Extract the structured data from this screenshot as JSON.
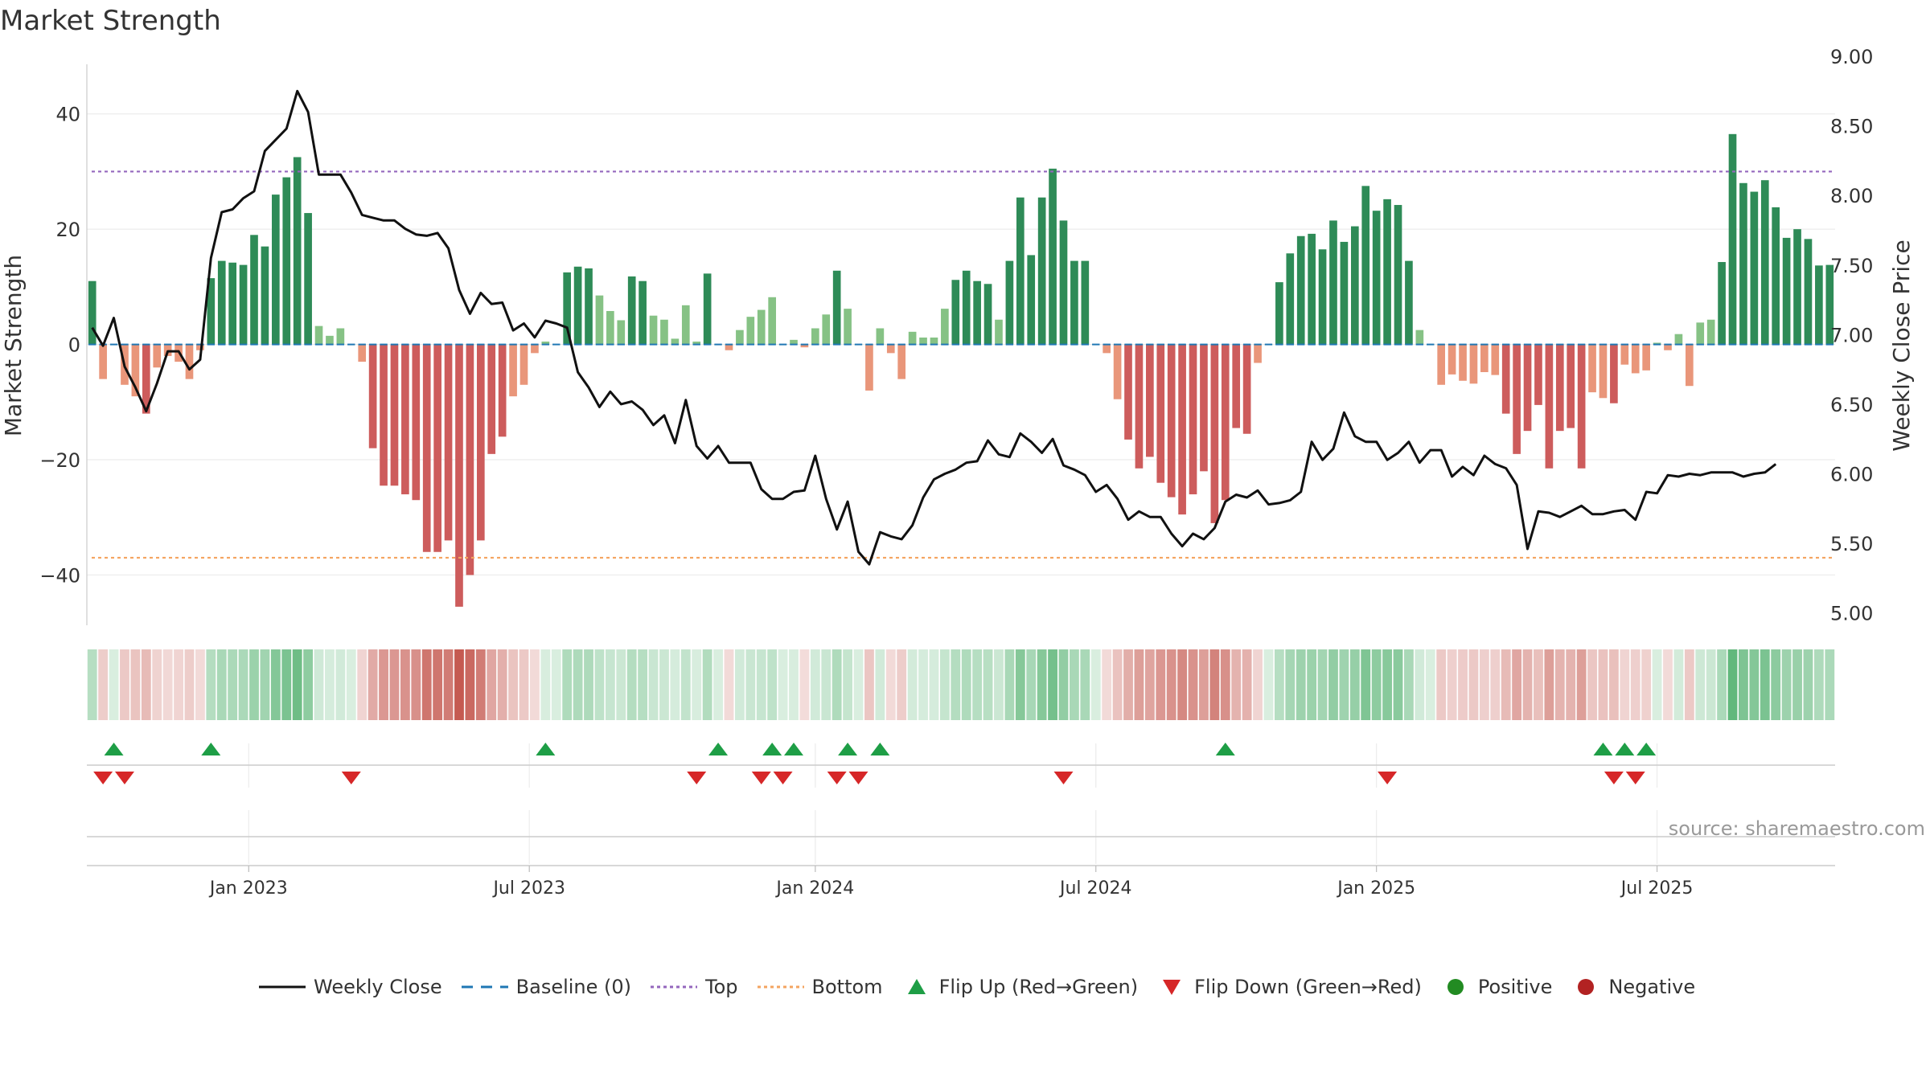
{
  "title": "Market Strength",
  "source": "source: sharemaestro.com",
  "colors": {
    "pos_strong": "#2e8b57",
    "pos_weak": "#86c285",
    "neg_strong": "#cd5c5c",
    "neg_weak": "#e9967a",
    "line": "#111111",
    "baseline": "#1f77b4",
    "top": "#9467bd",
    "bottom": "#f4a460",
    "flip_up": "#1e9e46",
    "flip_down": "#d62728",
    "positive": "#228b22",
    "negative": "#b22222",
    "grid": "#ececec"
  },
  "legend": [
    {
      "label": "Weekly Close",
      "symbol": "line"
    },
    {
      "label": "Baseline (0)",
      "symbol": "dash"
    },
    {
      "label": "Top",
      "symbol": "dot-line-top"
    },
    {
      "label": "Bottom",
      "symbol": "dot-line-bottom"
    },
    {
      "label": "Flip Up (Red→Green)",
      "symbol": "triangle-up"
    },
    {
      "label": "Flip Down (Green→Red)",
      "symbol": "triangle-down"
    },
    {
      "label": "Positive",
      "symbol": "dot-positive"
    },
    {
      "label": "Negative",
      "symbol": "dot-negative"
    }
  ],
  "chart_data": {
    "type": "bar",
    "title": "Market Strength",
    "xlabel": "",
    "ylabel": "Market Strength",
    "y2label": "Weekly Close Price",
    "ylim": [
      -49,
      50
    ],
    "y2lim": [
      4.9,
      9.0
    ],
    "yticks": [
      -40,
      -20,
      0,
      20,
      40
    ],
    "y2ticks": [
      "5.00",
      "5.50",
      "6.00",
      "6.50",
      "7.00",
      "7.50",
      "8.00",
      "8.50",
      "9.00"
    ],
    "x_tick_labels": [
      "Jan 2023",
      "Jul 2023",
      "Jan 2024",
      "Jul 2024",
      "Jan 2025",
      "Jul 2025"
    ],
    "x_tick_positions_weeks": [
      15,
      41,
      67.5,
      93.5,
      119.5,
      145.5
    ],
    "top_level": 30,
    "bottom_level": -37,
    "baseline": 0,
    "series": [
      {
        "name": "Market Strength",
        "values": [
          11,
          -6,
          0,
          -7,
          -9,
          -12,
          -4,
          -2,
          -3,
          -6,
          -1,
          11.5,
          14.5,
          14.2,
          13.8,
          19,
          17,
          26,
          29,
          32.5,
          22.8,
          3.2,
          1.5,
          2.8,
          0,
          -3,
          -18,
          -24.5,
          -24.5,
          -26,
          -27,
          -36,
          -36,
          -34,
          -45.5,
          -40,
          -34,
          -19,
          -16,
          -9,
          -7,
          -1.5,
          0.5,
          0,
          12.5,
          13.5,
          13.2,
          8.5,
          5.8,
          4.2,
          11.8,
          11,
          5,
          4.3,
          1,
          6.8,
          0.5,
          12.3,
          0,
          -1,
          2.5,
          4.8,
          6,
          8.2,
          0,
          0.8,
          -0.5,
          2.8,
          5.2,
          12.8,
          6.2,
          0,
          -8,
          2.8,
          -1.5,
          -6,
          2.2,
          1.2,
          1.2,
          6.2,
          11.2,
          12.8,
          11,
          10.5,
          4.3,
          14.5,
          25.5,
          15.5,
          25.5,
          30.5,
          21.5,
          14.5,
          14.5,
          0,
          -1.5,
          -9.5,
          -16.5,
          -21.5,
          -19.5,
          -24,
          -26.5,
          -29.5,
          -26,
          -22,
          -31,
          -27,
          -14.5,
          -15.5,
          -3.2,
          0,
          10.8,
          15.8,
          18.8,
          19.2,
          16.5,
          21.5,
          17.8,
          20.5,
          27.5,
          23.2,
          25.2,
          24.2,
          14.5,
          2.5,
          0,
          -7,
          -5.2,
          -6.3,
          -6.8,
          -4.8,
          -5.3,
          -12,
          -19,
          -15,
          -10.5,
          -21.5,
          -15,
          -14.5,
          -21.5,
          -8.3,
          -9.3,
          -10.2,
          -3.5,
          -5,
          -4.5,
          0.3,
          -1,
          1.8,
          -7.2,
          3.8,
          4.3,
          14.3,
          36.5,
          28,
          26.5,
          28.5,
          23.8,
          18.5,
          20,
          18.3,
          13.7,
          13.8
        ]
      },
      {
        "name": "Weekly Close",
        "values": [
          7.05,
          6.92,
          7.12,
          6.77,
          6.62,
          6.45,
          6.65,
          6.88,
          6.88,
          6.75,
          6.82,
          7.55,
          7.88,
          7.9,
          7.98,
          8.03,
          8.32,
          8.4,
          8.48,
          8.75,
          8.6,
          8.15,
          8.15,
          8.15,
          8.02,
          7.86,
          7.84,
          7.82,
          7.82,
          7.76,
          7.72,
          7.71,
          7.73,
          7.62,
          7.32,
          7.15,
          7.3,
          7.22,
          7.23,
          7.03,
          7.08,
          6.98,
          7.1,
          7.08,
          7.05,
          6.73,
          6.62,
          6.48,
          6.59,
          6.5,
          6.52,
          6.46,
          6.35,
          6.42,
          6.22,
          6.53,
          6.2,
          6.11,
          6.2,
          6.08,
          6.08,
          6.08,
          5.89,
          5.82,
          5.82,
          5.87,
          5.88,
          6.13,
          5.82,
          5.6,
          5.8,
          5.44,
          5.35,
          5.58,
          5.55,
          5.53,
          5.63,
          5.83,
          5.96,
          6.0,
          6.03,
          6.08,
          6.09,
          6.24,
          6.14,
          6.12,
          6.29,
          6.23,
          6.15,
          6.25,
          6.06,
          6.03,
          5.99,
          5.87,
          5.92,
          5.82,
          5.67,
          5.73,
          5.69,
          5.69,
          5.57,
          5.48,
          5.57,
          5.53,
          5.61,
          5.8,
          5.85,
          5.83,
          5.88,
          5.78,
          5.79,
          5.81,
          5.87,
          6.23,
          6.1,
          6.18,
          6.44,
          6.27,
          6.23,
          6.23,
          6.1,
          6.15,
          6.23,
          6.08,
          6.17,
          6.17,
          5.98,
          6.05,
          5.99,
          6.13,
          6.07,
          6.04,
          5.92,
          5.46,
          5.73,
          5.72,
          5.69,
          5.73,
          5.77,
          5.71,
          5.71,
          5.73,
          5.74,
          5.67,
          5.87,
          5.86,
          5.99,
          5.98,
          6.0,
          5.99,
          6.01,
          6.01,
          6.01,
          5.98,
          6.0,
          6.01,
          6.07
        ]
      }
    ],
    "flip_up_weeks": [
      2,
      11,
      42,
      58,
      63,
      65,
      70,
      73,
      105,
      140,
      142,
      144
    ],
    "flip_down_weeks": [
      1,
      3,
      24,
      56,
      62,
      64,
      69,
      71,
      90,
      120,
      141,
      143
    ],
    "grid": true
  }
}
